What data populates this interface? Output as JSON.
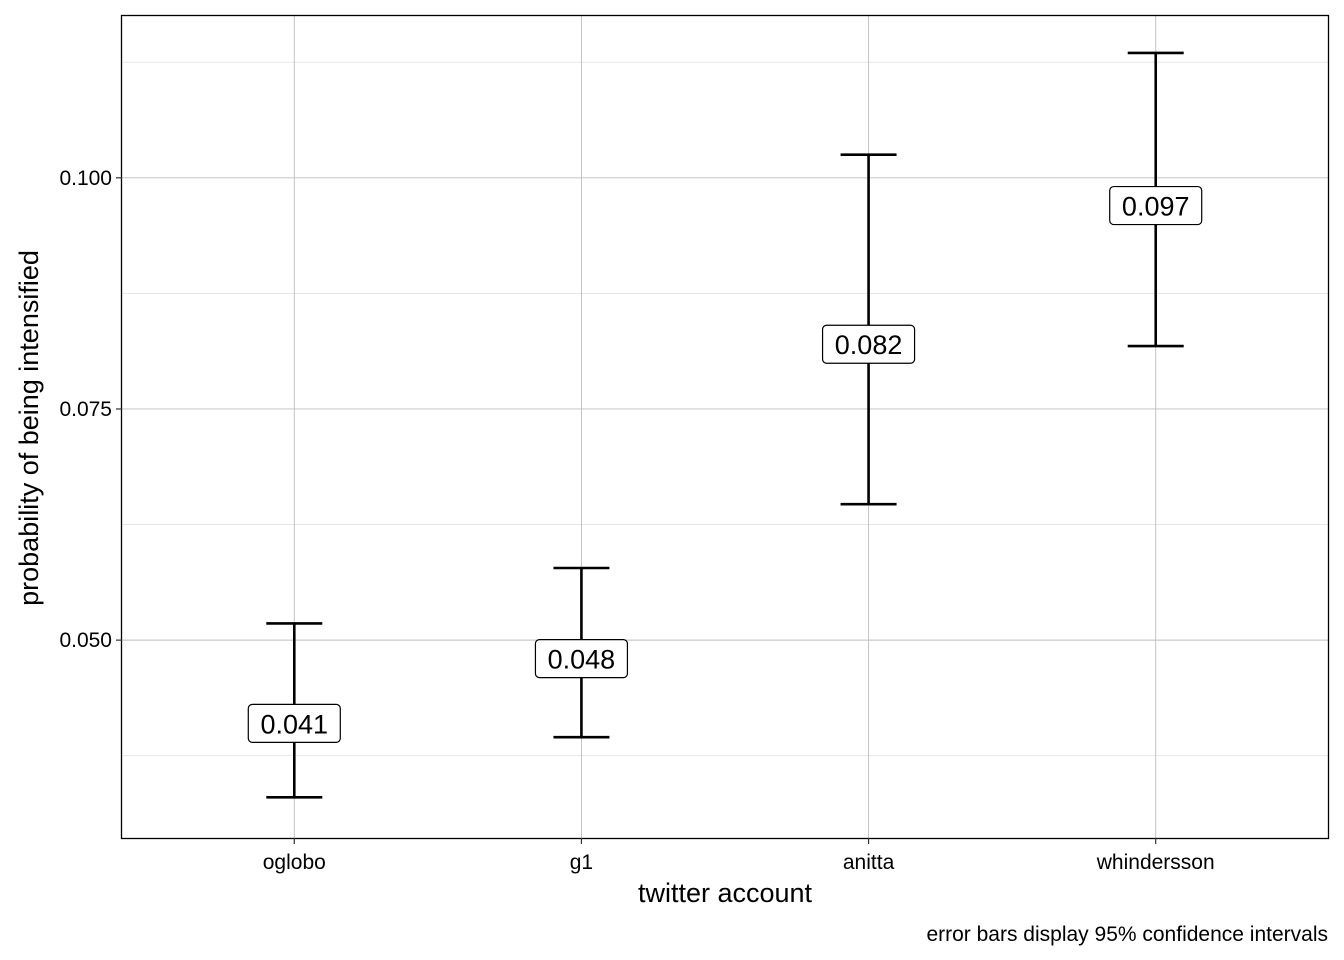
{
  "chart_data": {
    "type": "errorbar",
    "categories": [
      "oglobo",
      "g1",
      "anitta",
      "whindersson"
    ],
    "series": [
      {
        "values": [
          0.041,
          0.048,
          0.082,
          0.097
        ],
        "lower": [
          0.033,
          0.0395,
          0.0647,
          0.0818
        ],
        "upper": [
          0.0518,
          0.0578,
          0.1025,
          0.1135
        ]
      }
    ],
    "value_labels": [
      "0.041",
      "0.048",
      "0.082",
      "0.097"
    ],
    "xlabel": "twitter account",
    "ylabel": "probability of being intensified",
    "caption": "error bars display 95% confidence intervals",
    "yticks": [
      0.05,
      0.075,
      0.1
    ],
    "ytick_labels": [
      "0.050",
      "0.075",
      "0.100"
    ],
    "yminor": [
      0.0375,
      0.0625,
      0.0875,
      0.1125
    ],
    "ylim": [
      0.0286,
      0.1175
    ],
    "grid": true,
    "legend": "none"
  }
}
